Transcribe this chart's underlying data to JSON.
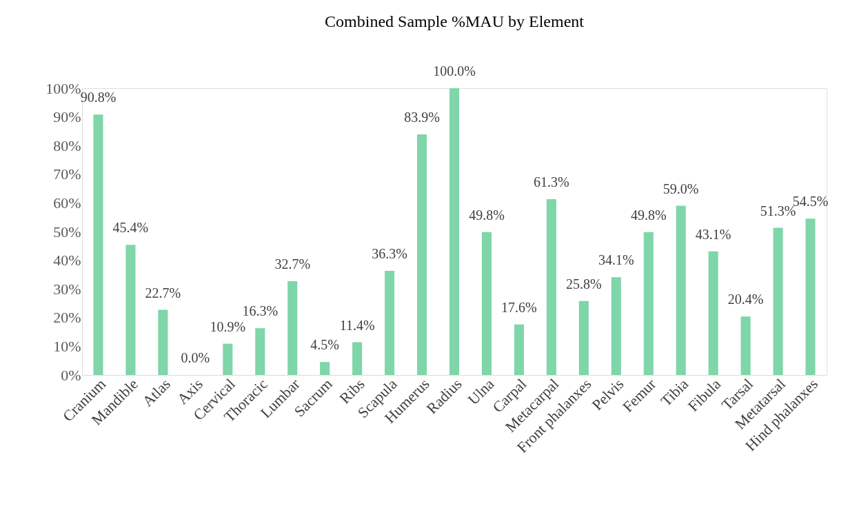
{
  "chart_data": {
    "type": "bar",
    "title": "Combined Sample %MAU by Element",
    "categories": [
      "Cranium",
      "Mandible",
      "Atlas",
      "Axis",
      "Cervical",
      "Thoracic",
      "Lumbar",
      "Sacrum",
      "Ribs",
      "Scapula",
      "Humerus",
      "Radius",
      "Ulna",
      "Carpal",
      "Metacarpal",
      "Front phalanxes",
      "Pelvis",
      "Femur",
      "Tibia",
      "Fibula",
      "Tarsal",
      "Metatarsal",
      "Hind phalanxes"
    ],
    "values": [
      90.8,
      45.4,
      22.7,
      0.0,
      10.9,
      16.3,
      32.7,
      4.5,
      11.4,
      36.3,
      83.9,
      100.0,
      49.8,
      17.6,
      61.3,
      25.8,
      34.1,
      49.8,
      59.0,
      43.1,
      20.4,
      51.3,
      54.5
    ],
    "value_labels": [
      "90.8%",
      "45.4%",
      "22.7%",
      "0.0%",
      "10.9%",
      "16.3%",
      "32.7%",
      "4.5%",
      "11.4%",
      "36.3%",
      "83.9%",
      "100.0%",
      "49.8%",
      "17.6%",
      "61.3%",
      "25.8%",
      "34.1%",
      "49.8%",
      "59.0%",
      "43.1%",
      "20.4%",
      "51.3%",
      "54.5%"
    ],
    "color": "#7fd6a8",
    "ylim": [
      0,
      100
    ],
    "yticks": [
      {
        "value": 0,
        "label": "0%"
      },
      {
        "value": 10,
        "label": "10%"
      },
      {
        "value": 20,
        "label": "20%"
      },
      {
        "value": 30,
        "label": "30%"
      },
      {
        "value": 40,
        "label": "40%"
      },
      {
        "value": 50,
        "label": "50%"
      },
      {
        "value": 60,
        "label": "60%"
      },
      {
        "value": 70,
        "label": "70%"
      },
      {
        "value": 80,
        "label": "80%"
      },
      {
        "value": 90,
        "label": "90%"
      },
      {
        "value": 100,
        "label": "100%"
      }
    ],
    "grid": false
  }
}
